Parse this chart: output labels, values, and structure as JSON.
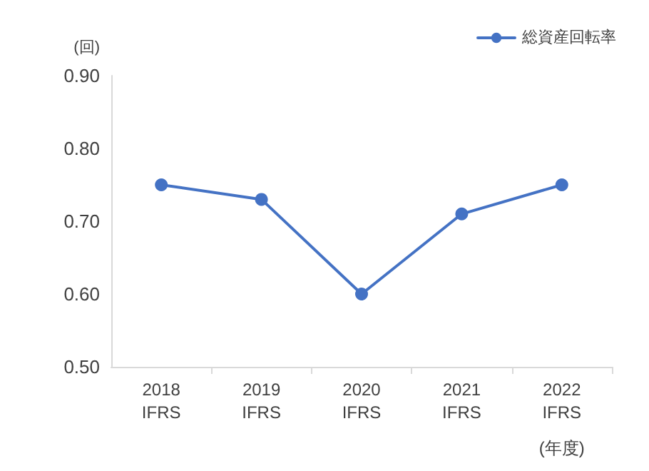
{
  "chart_data": {
    "type": "line",
    "ylabel": "(回)",
    "xlabel": "(年度)",
    "categories": [
      "2018\nIFRS",
      "2019\nIFRS",
      "2020\nIFRS",
      "2021\nIFRS",
      "2022\nIFRS"
    ],
    "series": [
      {
        "name": "総資産回転率",
        "color": "#4472c4",
        "values": [
          0.75,
          0.73,
          0.6,
          0.71,
          0.75
        ]
      }
    ],
    "ylim": [
      0.5,
      0.9
    ],
    "yticks": [
      {
        "value": 0.5,
        "label": "0.50"
      },
      {
        "value": 0.6,
        "label": "0.60"
      },
      {
        "value": 0.7,
        "label": "0.70"
      },
      {
        "value": 0.8,
        "label": "0.80"
      },
      {
        "value": 0.9,
        "label": "0.90"
      }
    ],
    "grid": false,
    "legend": "top right",
    "marker": "circle",
    "line_style": "solid"
  }
}
